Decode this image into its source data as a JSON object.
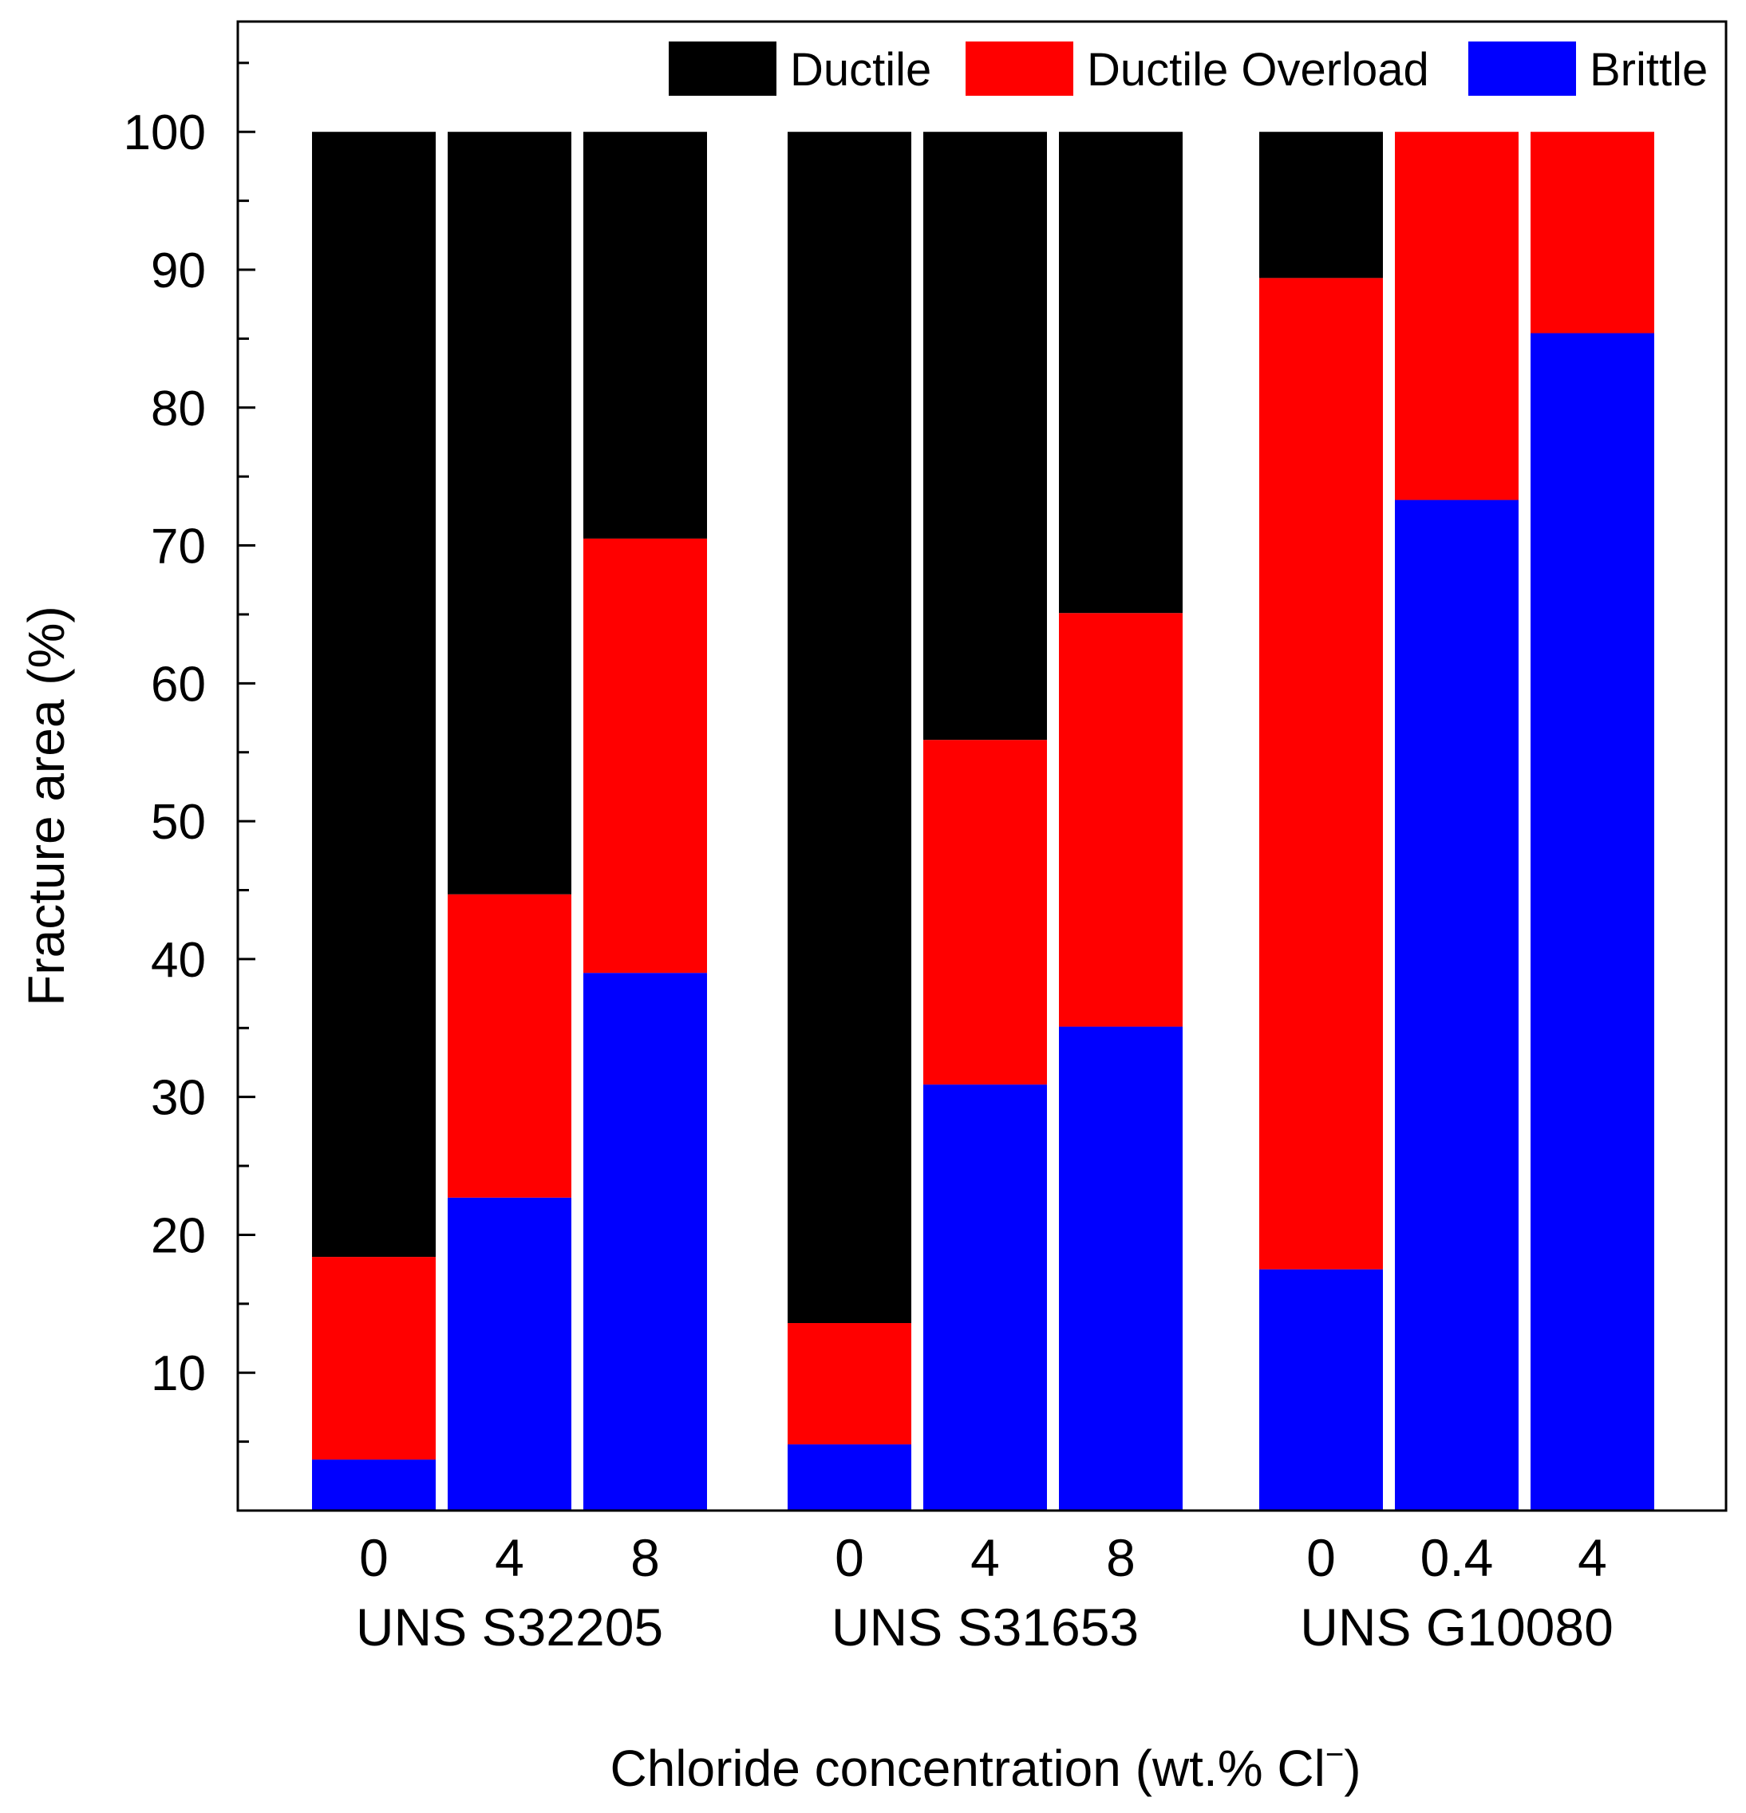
{
  "chart_data": {
    "type": "bar",
    "stacked": true,
    "title": "",
    "xlabel": "Chloride concentration (wt.% Cl",
    "xlabel_superscript": "−",
    "xlabel_close": ")",
    "ylabel": "Fracture area (%)",
    "ylim": [
      0,
      108
    ],
    "yticks": [
      10,
      20,
      30,
      40,
      50,
      60,
      70,
      80,
      90,
      100
    ],
    "grid": false,
    "legend_position": "top-right",
    "groups": [
      {
        "name": "UNS S32205",
        "categories": [
          "0",
          "4",
          "8"
        ]
      },
      {
        "name": "UNS S31653",
        "categories": [
          "0",
          "4",
          "8"
        ]
      },
      {
        "name": "UNS G10080",
        "categories": [
          "0",
          "0.4",
          "4"
        ]
      }
    ],
    "series": [
      {
        "name": "Brittle",
        "color": "#0000ff",
        "values": [
          3.7,
          22.7,
          39.0,
          4.8,
          30.9,
          35.1,
          17.5,
          73.3,
          85.4
        ]
      },
      {
        "name": "Ductile Overload",
        "color": "#ff0000",
        "values": [
          14.7,
          22.0,
          31.5,
          8.8,
          25.0,
          30.0,
          71.9,
          26.7,
          14.6
        ]
      },
      {
        "name": "Ductile",
        "color": "#000000",
        "values": [
          81.6,
          55.3,
          29.5,
          86.4,
          44.1,
          34.9,
          10.6,
          0.0,
          0.0
        ]
      }
    ],
    "legend_order": [
      "Ductile",
      "Ductile Overload",
      "Brittle"
    ]
  }
}
